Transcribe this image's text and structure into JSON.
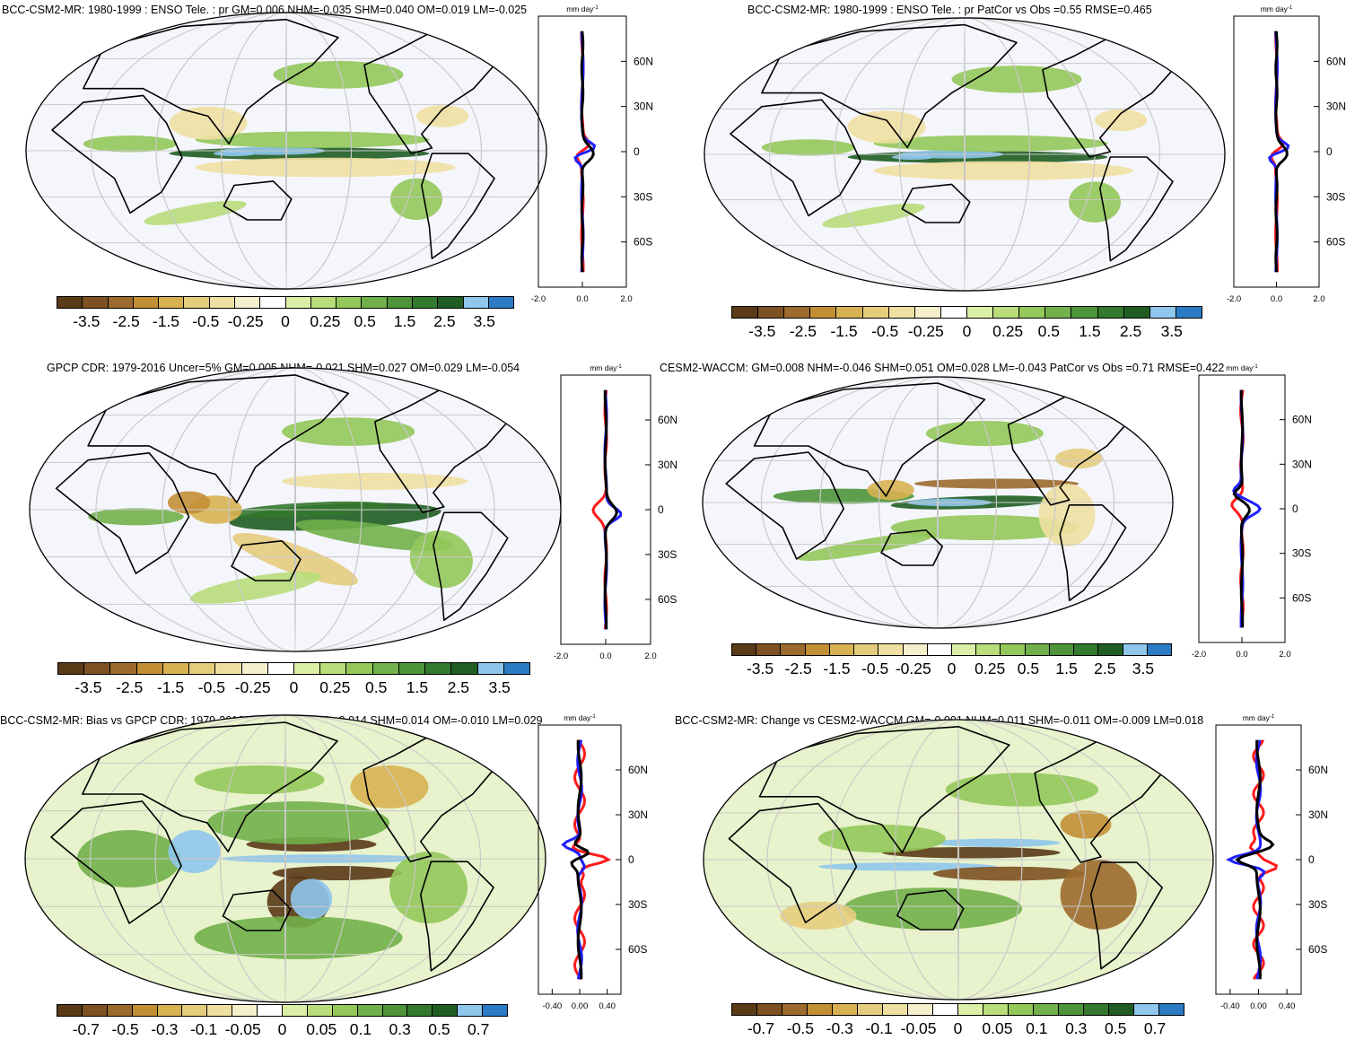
{
  "panels": [
    {
      "title": "BCC-CSM2-MR: 1980-1999 : ENSO Tele. : pr GM=0.006 NHM=-0.035 SHM=0.040 OM=0.019 LM=-0.025",
      "kind": "model",
      "scale": "main"
    },
    {
      "title": "BCC-CSM2-MR: 1980-1999 : ENSO Tele. : pr PatCor vs Obs =0.55 RMSE=0.465",
      "kind": "model",
      "scale": "main"
    },
    {
      "title": "GPCP CDR: 1979-2016 Uncer=5% GM=0.005 NHM=-0.021 SHM=0.027 OM=0.029 LM=-0.054",
      "kind": "obs",
      "scale": "main"
    },
    {
      "title": "CESM2-WACCM: GM=0.008 NHM=-0.046 SHM=0.051 OM=0.028 LM=-0.043 PatCor vs Obs =0.71 RMSE=0.422",
      "kind": "waccm",
      "scale": "main"
    },
    {
      "title": "BCC-CSM2-MR: Bias vs GPCP CDR: 1979-2016 GM=0.001 NHM=-0.014 SHM=0.014 OM=-0.010 LM=0.029",
      "kind": "bias",
      "scale": "diff"
    },
    {
      "title": "BCC-CSM2-MR: Change vs CESM2-WACCM GM=-0.001 NHM=0.011 SHM=-0.011 OM=-0.009 LM=0.018",
      "kind": "change",
      "scale": "diff"
    }
  ],
  "colorbars": {
    "main": {
      "labels": [
        "-3.5",
        "-2.5",
        "-1.5",
        "-0.5",
        "-0.25",
        "0",
        "0.25",
        "0.5",
        "1.5",
        "2.5",
        "3.5"
      ]
    },
    "diff": {
      "labels": [
        "-0.7",
        "-0.5",
        "-0.3",
        "-0.1",
        "-0.05",
        "0",
        "0.05",
        "0.1",
        "0.3",
        "0.5",
        "0.7"
      ]
    },
    "colors": [
      "#5a3a17",
      "#7d5121",
      "#9c6a2c",
      "#c38f35",
      "#d8b151",
      "#e5cd7d",
      "#efe0a2",
      "#f6efcc",
      "#ffffff",
      "#f3f7ff",
      "#dcefa6",
      "#b8dd7a",
      "#94c85a",
      "#71b04a",
      "#4e953a",
      "#33792e",
      "#1f5d22",
      "#8fc6ec",
      "#2a7bc4"
    ]
  },
  "profile": {
    "units": "mm day",
    "units_sup": "-1",
    "lat_labels": [
      "60N",
      "30N",
      "0",
      "30S",
      "60S"
    ],
    "x_main": [
      "-2.0",
      "0.0",
      "2.0"
    ],
    "x_diff": [
      "-0.40",
      "0.00",
      "0.40"
    ]
  },
  "chart_data": {
    "type": "map",
    "profile_y_lat": [
      90,
      60,
      30,
      0,
      -30,
      -60,
      -90
    ],
    "main_range": [
      -2.0,
      2.0
    ],
    "diff_range": [
      -0.6,
      0.6
    ],
    "series_colors": {
      "black": "#000000",
      "red": "#ff1a1a",
      "blue": "#1f1fff"
    }
  }
}
